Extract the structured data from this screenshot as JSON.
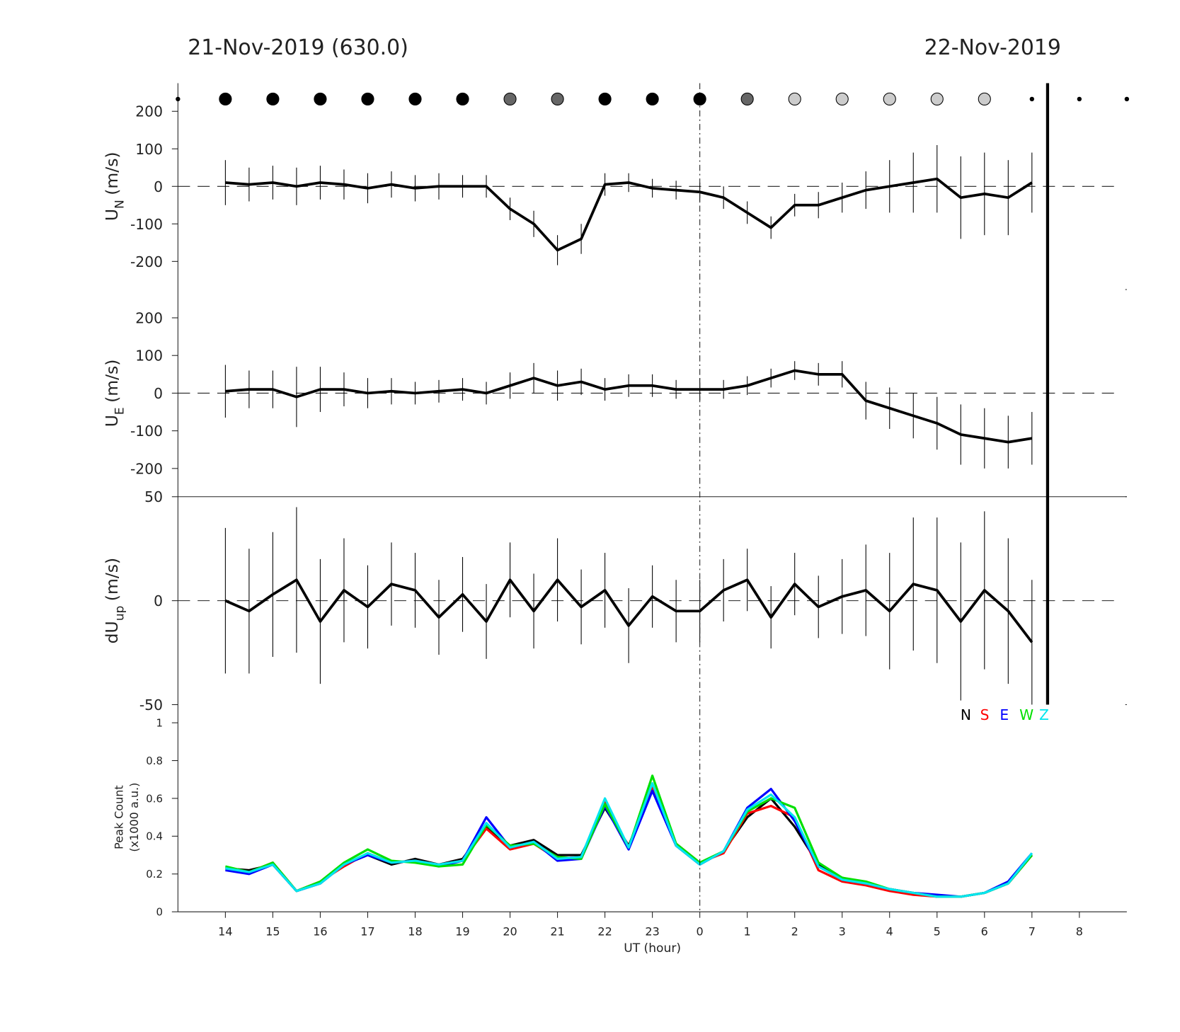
{
  "chart_data": [
    {
      "type": "errorline",
      "title": "21-Nov-2019 (630.0)",
      "title_right": "22-Nov-2019",
      "ylabel": "U",
      "ylabel_sub": "N",
      "ylabel_unit": "(m/s)",
      "xlim": [
        13,
        33
      ],
      "ylim": [
        -275,
        275
      ],
      "yticks": [
        -200,
        -100,
        0,
        100,
        200
      ],
      "zero_line": true,
      "midnight_x": 24,
      "end_x": 31.33,
      "indicators": {
        "x": [
          13,
          14,
          15,
          16,
          17,
          18,
          19,
          20,
          21,
          22,
          23,
          24,
          25,
          26,
          27,
          28,
          29,
          30,
          31,
          32,
          33
        ],
        "fills": [
          "#000",
          "#000",
          "#000",
          "#000",
          "#000",
          "#000",
          "#000",
          "#666",
          "#666",
          "#000",
          "#000",
          "#000",
          "#666",
          "#ccc",
          "#ccc",
          "#ccc",
          "#ccc",
          "#ccc",
          "#000",
          "#000",
          "#000"
        ],
        "sizes": [
          2.5,
          8,
          8,
          8,
          8,
          8,
          8,
          8,
          8,
          8,
          8,
          8,
          8,
          8,
          8,
          8,
          8,
          8,
          2.5,
          2.5,
          2.5
        ]
      },
      "x": [
        14,
        14.5,
        15,
        15.5,
        16,
        16.5,
        17,
        17.5,
        18,
        18.5,
        19,
        19.5,
        20,
        20.5,
        21,
        21.5,
        22,
        22.5,
        23,
        23.5,
        24,
        24.5,
        25,
        25.5,
        26,
        26.5,
        27,
        27.5,
        28,
        28.5,
        29,
        29.5,
        30,
        30.5,
        31
      ],
      "series": [
        {
          "color": "#000",
          "values": [
            10,
            5,
            10,
            0,
            10,
            5,
            -5,
            5,
            -5,
            0,
            0,
            0,
            -60,
            -100,
            -170,
            -140,
            5,
            10,
            -5,
            -10,
            -15,
            -30,
            -70,
            -110,
            -50,
            -50,
            -30,
            -10,
            0,
            10,
            20,
            -30,
            -20,
            -30,
            10
          ],
          "errors": [
            60,
            45,
            45,
            50,
            45,
            40,
            40,
            35,
            35,
            35,
            30,
            30,
            30,
            35,
            40,
            40,
            30,
            25,
            25,
            25,
            25,
            30,
            30,
            30,
            30,
            35,
            40,
            50,
            70,
            80,
            90,
            110,
            110,
            100,
            80
          ]
        }
      ]
    },
    {
      "type": "errorline",
      "ylabel": "U",
      "ylabel_sub": "E",
      "ylabel_unit": "(m/s)",
      "xlim": [
        13,
        33
      ],
      "ylim": [
        -275,
        275
      ],
      "yticks": [
        -200,
        -100,
        0,
        100,
        200
      ],
      "zero_line": true,
      "x": [
        14,
        14.5,
        15,
        15.5,
        16,
        16.5,
        17,
        17.5,
        18,
        18.5,
        19,
        19.5,
        20,
        20.5,
        21,
        21.5,
        22,
        22.5,
        23,
        23.5,
        24,
        24.5,
        25,
        25.5,
        26,
        26.5,
        27,
        27.5,
        28,
        28.5,
        29,
        29.5,
        30,
        30.5,
        31
      ],
      "series": [
        {
          "color": "#000",
          "values": [
            5,
            10,
            10,
            -10,
            10,
            10,
            0,
            5,
            0,
            5,
            10,
            0,
            20,
            40,
            20,
            30,
            10,
            20,
            20,
            10,
            10,
            10,
            20,
            40,
            60,
            50,
            50,
            -20,
            -40,
            -60,
            -80,
            -110,
            -120,
            -130,
            -120
          ],
          "errors": [
            70,
            50,
            50,
            80,
            60,
            45,
            40,
            35,
            30,
            30,
            30,
            30,
            35,
            40,
            40,
            35,
            30,
            30,
            30,
            25,
            30,
            25,
            25,
            25,
            25,
            30,
            35,
            50,
            55,
            60,
            70,
            80,
            80,
            70,
            70
          ]
        }
      ]
    },
    {
      "type": "errorline",
      "ylabel": "dU",
      "ylabel_sub": "up",
      "ylabel_unit": "(m/s)",
      "xlim": [
        13,
        33
      ],
      "ylim": [
        -50,
        50
      ],
      "yticks": [
        -50,
        0,
        50
      ],
      "zero_line": true,
      "x": [
        14,
        14.5,
        15,
        15.5,
        16,
        16.5,
        17,
        17.5,
        18,
        18.5,
        19,
        19.5,
        20,
        20.5,
        21,
        21.5,
        22,
        22.5,
        23,
        23.5,
        24,
        24.5,
        25,
        25.5,
        26,
        26.5,
        27,
        27.5,
        28,
        28.5,
        29,
        29.5,
        30,
        30.5,
        31
      ],
      "series": [
        {
          "color": "#000",
          "values": [
            0,
            -5,
            3,
            10,
            -10,
            5,
            -3,
            8,
            5,
            -8,
            3,
            -10,
            10,
            -5,
            10,
            -3,
            5,
            -12,
            2,
            -5,
            -5,
            5,
            10,
            -8,
            8,
            -3,
            2,
            5,
            -5,
            8,
            5,
            -10,
            5,
            -5,
            -20
          ],
          "errors": [
            35,
            30,
            30,
            35,
            30,
            25,
            20,
            20,
            18,
            18,
            18,
            18,
            18,
            18,
            20,
            18,
            18,
            18,
            15,
            15,
            15,
            15,
            15,
            15,
            15,
            15,
            18,
            22,
            28,
            32,
            35,
            38,
            38,
            35,
            30
          ]
        }
      ]
    },
    {
      "type": "line",
      "ylabel": "Peak Count",
      "ylabel_2": "(x1000 a.u.)",
      "xlabel": "UT (hour)",
      "xlim": [
        13,
        33
      ],
      "ylim": [
        0,
        1
      ],
      "yticks": [
        0,
        0.2,
        0.4,
        0.6,
        0.8,
        1
      ],
      "xticks": [
        14,
        15,
        16,
        17,
        18,
        19,
        20,
        21,
        22,
        23,
        {
          "value": 24,
          "label": "0"
        },
        {
          "value": 25,
          "label": "1"
        },
        {
          "value": 26,
          "label": "2"
        },
        {
          "value": 27,
          "label": "3"
        },
        {
          "value": 28,
          "label": "4"
        },
        {
          "value": 29,
          "label": "5"
        },
        {
          "value": 30,
          "label": "6"
        },
        {
          "value": 31,
          "label": "7"
        },
        {
          "value": 32,
          "label": "8"
        }
      ],
      "x": [
        14,
        14.5,
        15,
        15.5,
        16,
        16.5,
        17,
        17.5,
        18,
        18.5,
        19,
        19.5,
        20,
        20.5,
        21,
        21.5,
        22,
        22.5,
        23,
        23.5,
        24,
        24.5,
        25,
        25.5,
        26,
        26.5,
        27,
        27.5,
        28,
        28.5,
        29,
        29.5,
        30,
        30.5,
        31
      ],
      "series": [
        {
          "name": "N",
          "color": "#000000",
          "values": [
            0.23,
            0.22,
            0.25,
            0.11,
            0.15,
            0.25,
            0.3,
            0.25,
            0.28,
            0.25,
            0.28,
            0.45,
            0.35,
            0.38,
            0.3,
            0.3,
            0.55,
            0.35,
            0.65,
            0.35,
            0.25,
            0.32,
            0.5,
            0.6,
            0.45,
            0.25,
            0.18,
            0.15,
            0.12,
            0.1,
            0.08,
            0.08,
            0.1,
            0.15,
            0.3
          ]
        },
        {
          "name": "S",
          "color": "#ff0000",
          "values": [
            0.23,
            0.21,
            0.26,
            0.11,
            0.16,
            0.24,
            0.31,
            0.26,
            0.27,
            0.25,
            0.27,
            0.44,
            0.33,
            0.36,
            0.28,
            0.29,
            0.58,
            0.34,
            0.66,
            0.36,
            0.26,
            0.31,
            0.52,
            0.56,
            0.5,
            0.22,
            0.16,
            0.14,
            0.11,
            0.09,
            0.08,
            0.08,
            0.1,
            0.15,
            0.3
          ]
        },
        {
          "name": "E",
          "color": "#0000ff",
          "values": [
            0.22,
            0.2,
            0.25,
            0.11,
            0.15,
            0.25,
            0.3,
            0.26,
            0.27,
            0.24,
            0.27,
            0.5,
            0.34,
            0.37,
            0.27,
            0.28,
            0.56,
            0.33,
            0.64,
            0.35,
            0.25,
            0.32,
            0.55,
            0.65,
            0.48,
            0.24,
            0.17,
            0.15,
            0.12,
            0.1,
            0.09,
            0.08,
            0.1,
            0.16,
            0.31
          ]
        },
        {
          "name": "W",
          "color": "#00e000",
          "values": [
            0.24,
            0.21,
            0.26,
            0.11,
            0.16,
            0.26,
            0.33,
            0.27,
            0.26,
            0.24,
            0.25,
            0.46,
            0.35,
            0.36,
            0.29,
            0.28,
            0.57,
            0.34,
            0.72,
            0.36,
            0.26,
            0.32,
            0.53,
            0.6,
            0.55,
            0.26,
            0.18,
            0.16,
            0.12,
            0.1,
            0.08,
            0.08,
            0.1,
            0.15,
            0.3
          ]
        },
        {
          "name": "Z",
          "color": "#00e5ee",
          "values": [
            0.23,
            0.21,
            0.25,
            0.11,
            0.15,
            0.25,
            0.31,
            0.26,
            0.27,
            0.25,
            0.27,
            0.47,
            0.34,
            0.37,
            0.28,
            0.29,
            0.6,
            0.34,
            0.68,
            0.35,
            0.25,
            0.32,
            0.54,
            0.62,
            0.5,
            0.24,
            0.17,
            0.15,
            0.12,
            0.1,
            0.08,
            0.08,
            0.1,
            0.15,
            0.31
          ]
        }
      ]
    }
  ]
}
